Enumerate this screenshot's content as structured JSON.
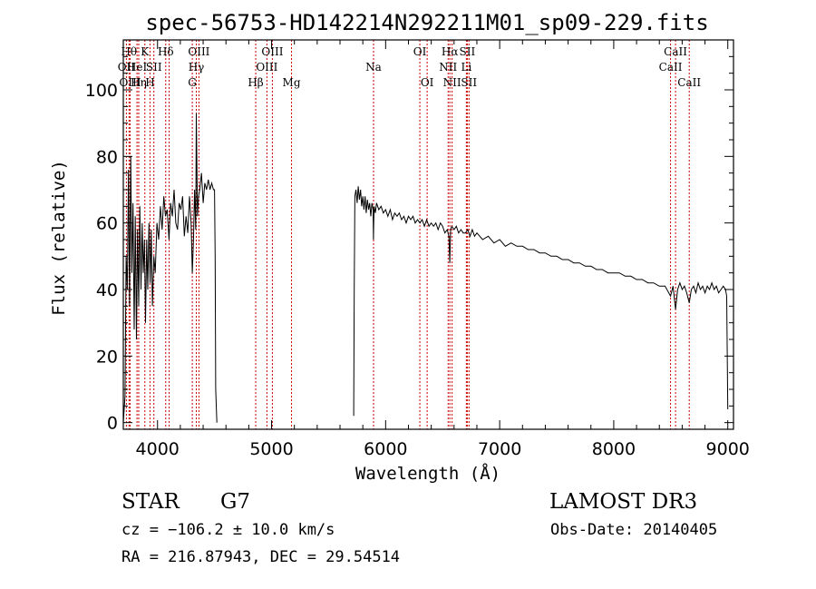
{
  "chart_data": {
    "type": "line",
    "title": "spec-56753-HD142214N292211M01_sp09-229.fits",
    "xlabel": "Wavelength (Å)",
    "ylabel": "Flux (relative)",
    "xlim": [
      3700,
      9050
    ],
    "ylim": [
      -2,
      115
    ],
    "x_ticks": [
      4000,
      5000,
      6000,
      7000,
      8000,
      9000
    ],
    "y_ticks": [
      0,
      20,
      40,
      60,
      80,
      100
    ],
    "grid": false,
    "line_color": "#000000",
    "marker_color": "#cc0000",
    "series": [
      {
        "x": [
          3700,
          3715,
          3725,
          3735,
          3745,
          3755,
          3765,
          3775,
          3785,
          3795,
          3805,
          3815,
          3825,
          3835,
          3845,
          3855,
          3865,
          3875,
          3885,
          3895,
          3905,
          3915,
          3925,
          3935,
          3945,
          3955,
          3968,
          3980,
          3995,
          4010,
          4025,
          4040,
          4055,
          4070,
          4085,
          4101,
          4115,
          4130,
          4145,
          4160,
          4175,
          4190,
          4205,
          4220,
          4235,
          4250,
          4265,
          4280,
          4295,
          4305,
          4315,
          4325,
          4335,
          4340,
          4350,
          4360,
          4370,
          4385,
          4400,
          4415,
          4430,
          4445,
          4460,
          4475,
          4490,
          4500,
          4505,
          4510,
          4520
        ],
        "y": [
          0,
          8,
          50,
          40,
          76,
          35,
          80,
          45,
          66,
          28,
          62,
          25,
          58,
          35,
          65,
          40,
          60,
          45,
          55,
          30,
          55,
          40,
          60,
          42,
          58,
          35,
          50,
          45,
          60,
          55,
          65,
          58,
          68,
          62,
          64,
          55,
          66,
          62,
          70,
          60,
          58,
          66,
          64,
          68,
          56,
          62,
          57,
          68,
          60,
          45,
          55,
          70,
          58,
          93,
          62,
          68,
          70,
          75,
          66,
          72,
          70,
          73,
          70,
          72,
          70,
          70,
          50,
          10,
          0
        ]
      },
      {
        "x": [
          5720,
          5725,
          5730,
          5740,
          5750,
          5760,
          5770,
          5780,
          5790,
          5800,
          5810,
          5820,
          5830,
          5840,
          5850,
          5860,
          5870,
          5880,
          5890,
          5893,
          5896,
          5900,
          5910,
          5920,
          5940,
          5960,
          5980,
          6000,
          6020,
          6040,
          6060,
          6080,
          6100,
          6120,
          6140,
          6160,
          6180,
          6200,
          6220,
          6240,
          6260,
          6280,
          6300,
          6320,
          6340,
          6360,
          6380,
          6400,
          6420,
          6440,
          6460,
          6480,
          6500,
          6520,
          6540,
          6555,
          6563,
          6570,
          6580,
          6600,
          6620,
          6640,
          6660,
          6680,
          6700,
          6720,
          6740,
          6760,
          6780,
          6800,
          6850,
          6900,
          6950,
          7000,
          7050,
          7100,
          7150,
          7200,
          7250,
          7300,
          7350,
          7400,
          7450,
          7500,
          7550,
          7600,
          7650,
          7700,
          7750,
          7800,
          7850,
          7900,
          7950,
          8000,
          8050,
          8100,
          8150,
          8200,
          8250,
          8300,
          8350,
          8400,
          8450,
          8498,
          8520,
          8542,
          8560,
          8580,
          8600,
          8620,
          8640,
          8662,
          8680,
          8700,
          8720,
          8740,
          8760,
          8780,
          8800,
          8820,
          8840,
          8860,
          8880,
          8900,
          8920,
          8940,
          8960,
          8980,
          8990,
          9000
        ],
        "y": [
          2,
          40,
          68,
          70,
          66,
          71,
          67,
          70,
          65,
          68,
          64,
          68,
          63,
          67,
          64,
          66,
          62,
          66,
          64,
          55,
          60,
          65,
          63,
          66,
          64,
          65,
          63,
          64,
          62,
          64,
          61,
          63,
          62,
          63,
          61,
          62,
          60,
          62,
          61,
          62,
          60,
          61,
          60,
          61,
          59,
          61,
          59,
          60,
          59,
          60,
          58,
          60,
          59,
          57,
          58,
          56,
          48,
          58,
          59,
          58,
          59,
          57,
          58,
          57,
          57,
          58,
          56,
          58,
          56,
          57,
          55,
          56,
          54,
          55,
          53,
          54,
          53,
          53,
          52,
          52,
          51,
          51,
          50,
          50,
          49,
          49,
          48,
          48,
          47,
          47,
          46,
          46,
          45,
          45,
          45,
          44,
          44,
          43,
          43,
          42,
          42,
          41,
          41,
          38,
          41,
          34,
          40,
          42,
          40,
          41,
          39,
          36,
          40,
          41,
          39,
          42,
          40,
          41,
          39,
          41,
          40,
          42,
          40,
          41,
          39,
          40,
          41,
          40,
          38,
          4
        ]
      }
    ],
    "lines": [
      {
        "name": "OII",
        "x": 3727,
        "row": 2
      },
      {
        "name": "Hθ",
        "x": 3750,
        "row": 1
      },
      {
        "name": "OIII",
        "x": 3760,
        "row": 3
      },
      {
        "name": "HeI",
        "x": 3820,
        "row": 2
      },
      {
        "name": "Hη",
        "x": 3835,
        "row": 3
      },
      {
        "name": "K",
        "x": 3889,
        "row": 1
      },
      {
        "name": "H",
        "x": 3934,
        "row": 3
      },
      {
        "name": "SII",
        "x": 3968,
        "row": 2
      },
      {
        "name": "Hδ",
        "x": 4072,
        "row": 1
      },
      {
        "name": "",
        "x": 4102,
        "row": 1
      },
      {
        "name": "G",
        "x": 4305,
        "row": 3
      },
      {
        "name": "Hγ",
        "x": 4340,
        "row": 2
      },
      {
        "name": "OIII",
        "x": 4363,
        "row": 1
      },
      {
        "name": "Hβ",
        "x": 4861,
        "row": 3
      },
      {
        "name": "OIII",
        "x": 4959,
        "row": 2
      },
      {
        "name": "OIII",
        "x": 5007,
        "row": 1
      },
      {
        "name": "Mg",
        "x": 5175,
        "row": 3
      },
      {
        "name": "Na",
        "x": 5894,
        "row": 2
      },
      {
        "name": "OI",
        "x": 6300,
        "row": 1
      },
      {
        "name": "OI",
        "x": 6364,
        "row": 3
      },
      {
        "name": "NII",
        "x": 6548,
        "row": 2
      },
      {
        "name": "Hα",
        "x": 6563,
        "row": 1
      },
      {
        "name": "NII",
        "x": 6583,
        "row": 3
      },
      {
        "name": "SII",
        "x": 6716,
        "row": 1
      },
      {
        "name": "Li",
        "x": 6708,
        "row": 2
      },
      {
        "name": "SII",
        "x": 6731,
        "row": 3
      },
      {
        "name": "CaII",
        "x": 8498,
        "row": 2
      },
      {
        "name": "CaII",
        "x": 8542,
        "row": 1
      },
      {
        "name": "CaII",
        "x": 8662,
        "row": 3
      }
    ]
  },
  "info": {
    "object_class": "STAR",
    "subclass": "G7",
    "survey": "LAMOST DR3",
    "cz": "cz = −106.2 ± 10.0 km/s",
    "obs_date": "Obs-Date: 20140405",
    "coords": "RA = 216.87943, DEC =  29.54514"
  }
}
